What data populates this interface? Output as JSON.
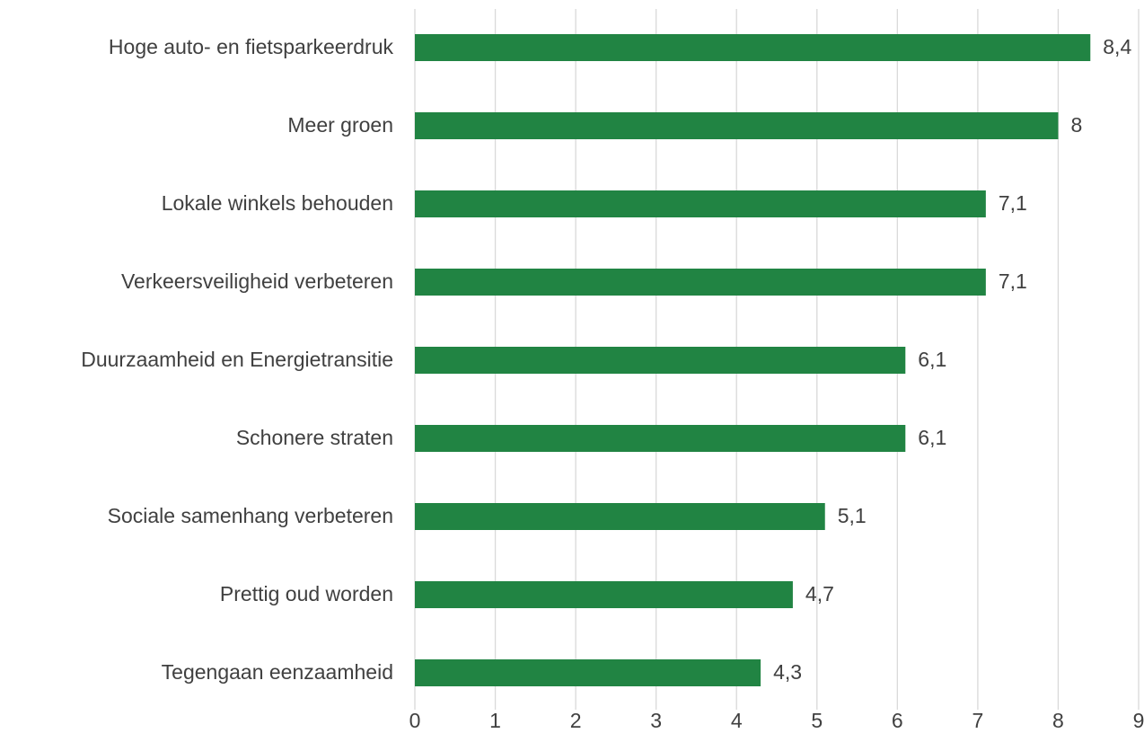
{
  "chart_data": {
    "type": "bar",
    "orientation": "horizontal",
    "categories": [
      "Hoge auto- en fietsparkeerdruk",
      "Meer groen",
      "Lokale winkels behouden",
      "Verkeersveiligheid verbeteren",
      "Duurzaamheid en Energietransitie",
      "Schonere straten",
      "Sociale samenhang verbeteren",
      "Prettig oud worden",
      "Tegengaan eenzaamheid"
    ],
    "values": [
      8.4,
      8,
      7.1,
      7.1,
      6.1,
      6.1,
      5.1,
      4.7,
      4.3
    ],
    "value_labels": [
      "8,4",
      "8",
      "7,1",
      "7,1",
      "6,1",
      "6,1",
      "5,1",
      "4,7",
      "4,3"
    ],
    "color": "#218443",
    "xlim": [
      0,
      9
    ],
    "xticks": [
      0,
      1,
      2,
      3,
      4,
      5,
      6,
      7,
      8,
      9
    ],
    "grid": true
  }
}
